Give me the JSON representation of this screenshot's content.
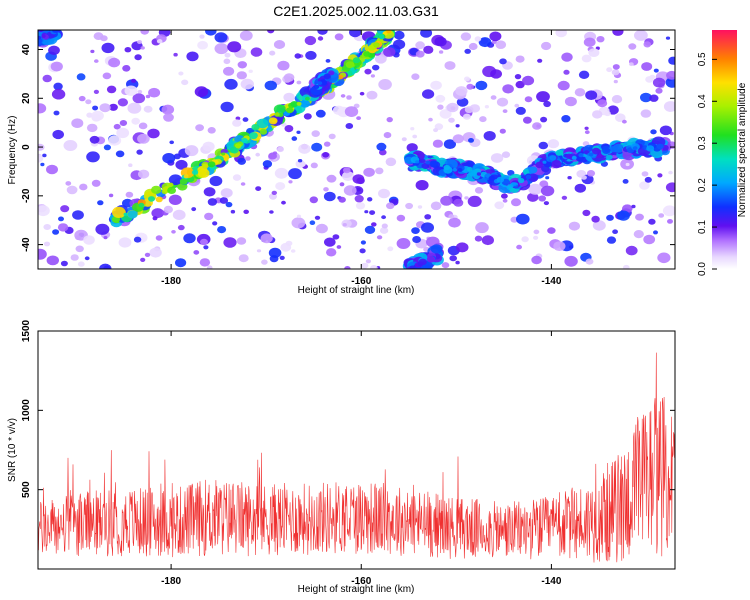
{
  "title": "C2E1.2025.002.11.03.G31",
  "chart_data": [
    {
      "type": "heatmap",
      "xlabel": "Height of straight line (km)",
      "ylabel": "Frequency (Hz)",
      "xlim": [
        -194,
        -127
      ],
      "ylim": [
        -50,
        48
      ],
      "x_ticks": [
        -180,
        -160,
        -140
      ],
      "y_ticks": [
        -40,
        -20,
        0,
        20,
        40
      ],
      "colorbar": {
        "label": "Normalized spectral amplitude",
        "range": [
          0,
          0.57
        ],
        "ticks": [
          0.0,
          0.1,
          0.2,
          0.3,
          0.4,
          0.5
        ],
        "tick_labels": [
          "0.0",
          "0.1",
          "0.2",
          "0.3",
          "0.4",
          "0.5"
        ]
      },
      "features": [
        {
          "x": [
            -186,
            -175,
            -169,
            -163,
            -159,
            -157
          ],
          "y": [
            -30,
            -5,
            12,
            27,
            40,
            48
          ],
          "peak": 0.55
        },
        {
          "x": [
            -155,
            -152,
            -148,
            -144,
            -140,
            -136,
            -132,
            -128
          ],
          "y": [
            -5,
            -8,
            -10,
            -16,
            -5,
            -3,
            -1,
            0
          ],
          "peak": 0.25
        },
        {
          "x": [
            -155,
            -152
          ],
          "y": [
            -50,
            -44
          ],
          "peak": 0.2
        },
        {
          "x": [
            -165,
            -163
          ],
          "y": [
            24,
            30
          ],
          "peak": 0.2
        },
        {
          "x": [
            -194,
            -192
          ],
          "y": [
            44,
            48
          ],
          "peak": 0.2
        }
      ]
    },
    {
      "type": "line",
      "xlabel": "Height of straight line (km)",
      "ylabel": "SNR (10 * v/v)",
      "xlim": [
        -194,
        -127
      ],
      "ylim": [
        0,
        1500
      ],
      "x_ticks": [
        -180,
        -160,
        -140
      ],
      "y_ticks": [
        500,
        1000,
        1500
      ],
      "color": "#f03030",
      "series": [
        {
          "x": [
            -194,
            -190,
            -185,
            -180,
            -176,
            -170,
            -165,
            -160,
            -155,
            -150,
            -145,
            -140,
            -136,
            -133,
            -131,
            -129,
            -127
          ],
          "y": [
            250,
            280,
            300,
            290,
            330,
            310,
            320,
            330,
            300,
            260,
            240,
            260,
            300,
            380,
            500,
            620,
            550
          ],
          "spread": [
            180,
            200,
            220,
            220,
            250,
            230,
            230,
            240,
            220,
            200,
            180,
            200,
            260,
            350,
            450,
            550,
            450
          ]
        }
      ]
    }
  ]
}
